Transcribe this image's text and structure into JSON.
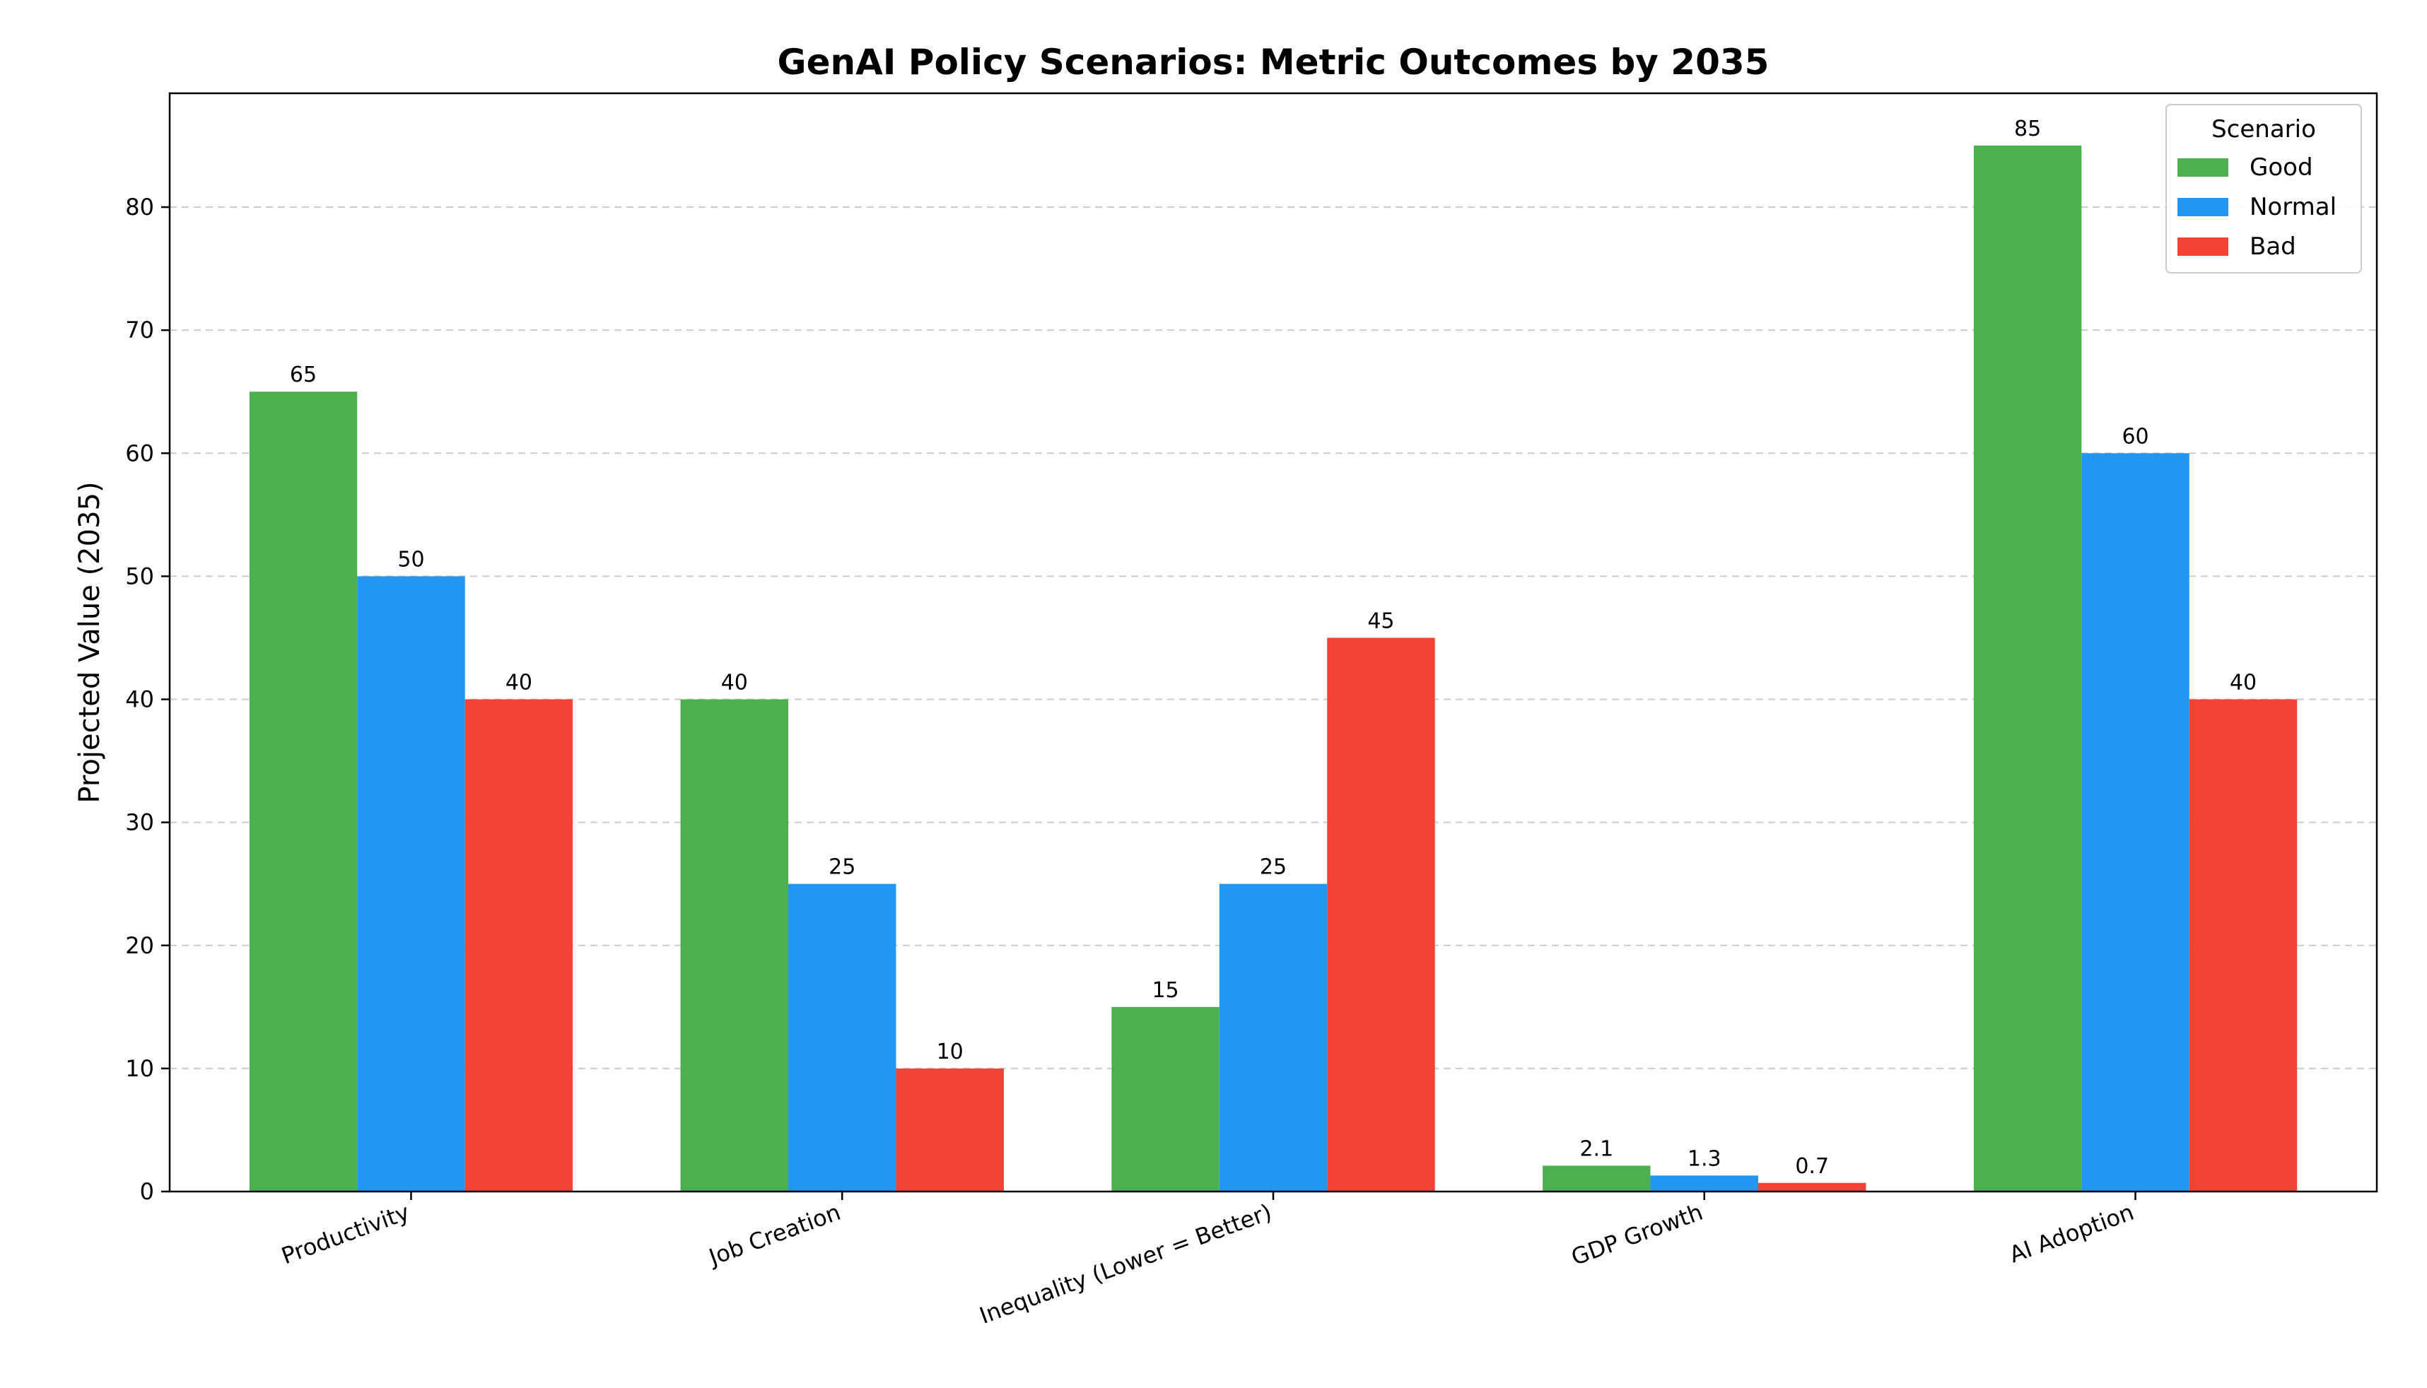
{
  "chart_data": {
    "type": "bar",
    "title": "GenAI Policy Scenarios: Metric Outcomes by 2035",
    "xlabel": "",
    "ylabel": "Projected Value (2035)",
    "ylim": [
      0,
      89.25
    ],
    "yticks": [
      0,
      10,
      20,
      30,
      40,
      50,
      60,
      70,
      80
    ],
    "grid": "y-dashed",
    "legend": {
      "title": "Scenario",
      "placement": "top-right"
    },
    "categories": [
      "Productivity",
      "Job Creation",
      "Inequality (Lower = Better)",
      "GDP Growth",
      "AI Adoption"
    ],
    "series": [
      {
        "name": "Good",
        "color": "#4caf50",
        "values": [
          65,
          40,
          15,
          2.1,
          85
        ]
      },
      {
        "name": "Normal",
        "color": "#2196f3",
        "values": [
          50,
          25,
          25,
          1.3,
          60
        ]
      },
      {
        "name": "Bad",
        "color": "#f44336",
        "values": [
          40,
          10,
          45,
          0.7,
          40
        ]
      }
    ]
  }
}
